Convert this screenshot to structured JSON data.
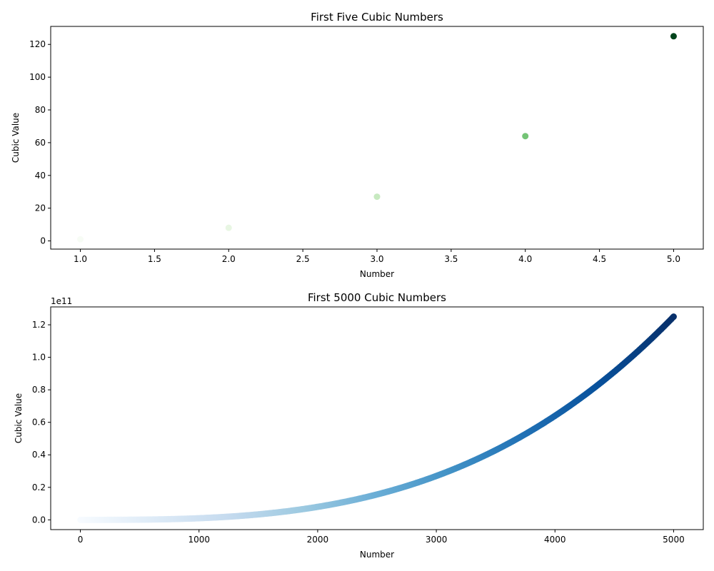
{
  "chart_data": [
    {
      "type": "scatter",
      "title": "First Five Cubic Numbers",
      "xlabel": "Number",
      "ylabel": "Cubic Value",
      "colormap": "Greens",
      "x": [
        1,
        2,
        3,
        4,
        5
      ],
      "y": [
        1,
        8,
        27,
        64,
        125
      ],
      "point_colors": [
        "#f7fcf5",
        "#e8f6e3",
        "#c7e9c0",
        "#74c476",
        "#00441b"
      ],
      "xlim": [
        0.8,
        5.2
      ],
      "ylim": [
        -5,
        131
      ],
      "xticks": [
        1.0,
        1.5,
        2.0,
        2.5,
        3.0,
        3.5,
        4.0,
        4.5,
        5.0
      ],
      "xtick_labels": [
        "1.0",
        "1.5",
        "2.0",
        "2.5",
        "3.0",
        "3.5",
        "4.0",
        "4.5",
        "5.0"
      ],
      "yticks": [
        0,
        20,
        40,
        60,
        80,
        100,
        120
      ],
      "ytick_labels": [
        "0",
        "20",
        "40",
        "60",
        "80",
        "100",
        "120"
      ],
      "grid": false
    },
    {
      "type": "scatter",
      "title": "First 5000 Cubic Numbers",
      "xlabel": "Number",
      "ylabel": "Cubic Value",
      "colormap": "Blues",
      "x_range": [
        1,
        5000
      ],
      "y_formula": "x^3",
      "y_offset_label": "1e11",
      "xlim": [
        -250,
        5250
      ],
      "ylim": [
        -0.06,
        1.31
      ],
      "xticks": [
        0,
        1000,
        2000,
        3000,
        4000,
        5000
      ],
      "xtick_labels": [
        "0",
        "1000",
        "2000",
        "3000",
        "4000",
        "5000"
      ],
      "yticks": [
        0.0,
        0.2,
        0.4,
        0.6,
        0.8,
        1.0,
        1.2
      ],
      "ytick_labels": [
        "0.0",
        "0.2",
        "0.4",
        "0.6",
        "0.8",
        "1.0",
        "1.2"
      ],
      "grid": false
    }
  ]
}
